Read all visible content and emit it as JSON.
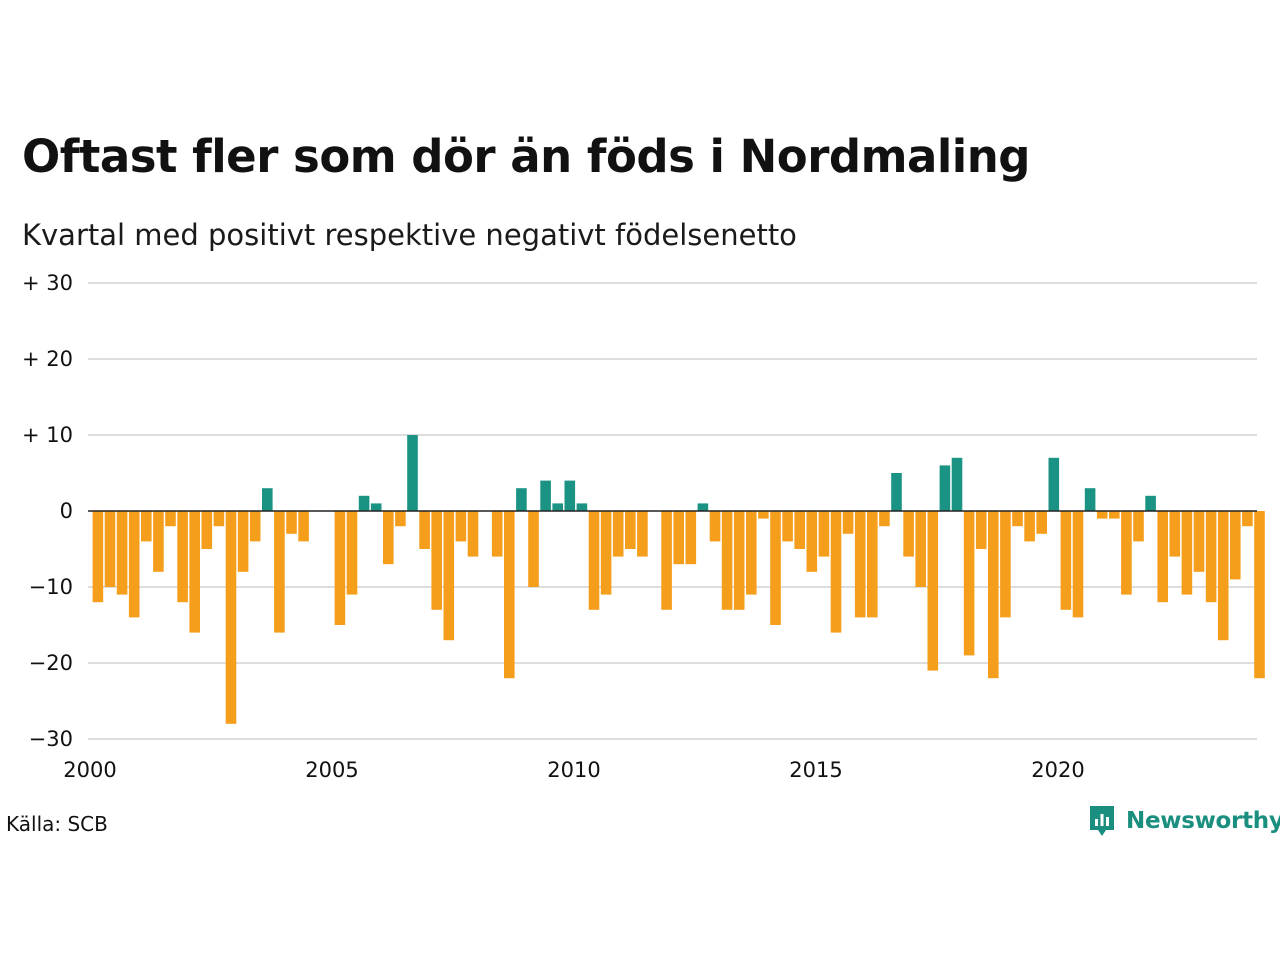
{
  "title": "Oftast fler som dör än föds i Nordmaling",
  "subtitle": "Kvartal med positivt respektive negativt födelsenetto",
  "source": "Källa: SCB",
  "brand": "Newsworthy",
  "colors": {
    "positive": "#1b9384",
    "negative": "#f59e1c",
    "grid": "#dddddd",
    "zero": "#222222"
  },
  "chart_data": {
    "type": "bar",
    "ylim": [
      -30,
      30
    ],
    "yticks": [
      30,
      20,
      10,
      0,
      -10,
      -20,
      -30
    ],
    "ytick_labels": [
      "+ 30",
      "+ 20",
      "+ 10",
      "0",
      "−10",
      "−20",
      "−30"
    ],
    "xticks": [
      "2000",
      "2005",
      "2010",
      "2015",
      "2020"
    ],
    "start": "2000 Q1",
    "values": [
      -12,
      -10,
      -11,
      -14,
      -4,
      -8,
      -2,
      -12,
      -16,
      -5,
      -2,
      -28,
      -8,
      -4,
      3,
      -16,
      -3,
      -4,
      0,
      0,
      -15,
      -11,
      2,
      1,
      -7,
      -2,
      10,
      -5,
      -13,
      -17,
      -4,
      -6,
      0,
      -6,
      -22,
      3,
      -10,
      4,
      1,
      4,
      1,
      -13,
      -11,
      -6,
      -5,
      -6,
      0,
      -13,
      -7,
      -7,
      1,
      -4,
      -13,
      -13,
      -11,
      -1,
      -15,
      -4,
      -5,
      -8,
      -6,
      -16,
      -3,
      -14,
      -14,
      -2,
      5,
      -6,
      -10,
      -21,
      6,
      7,
      -19,
      -5,
      -22,
      -14,
      -2,
      -4,
      -3,
      7,
      -13,
      -14,
      3,
      -1,
      -1,
      -11,
      -4,
      2,
      -12,
      -6,
      -11,
      -8,
      -12,
      -17,
      -9,
      -2,
      -22
    ]
  }
}
